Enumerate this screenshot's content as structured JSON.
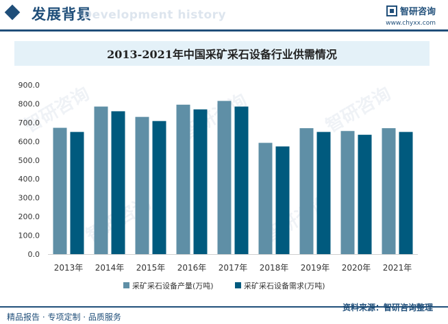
{
  "header": {
    "section_title": "发展背景",
    "ghost_text": "Development history",
    "brand_name": "智研咨询",
    "brand_url": "www.chyxx.com"
  },
  "colors": {
    "primary": "#1f4e79",
    "production": "#5f8fa6",
    "demand": "#005a7e",
    "title_band": "#e4f1f8"
  },
  "chart_data": {
    "type": "bar",
    "title": "2013-2021年中国采矿采石设备行业供需情况",
    "categories": [
      "2013年",
      "2014年",
      "2015年",
      "2016年",
      "2017年",
      "2018年",
      "2019年",
      "2020年",
      "2021年"
    ],
    "series": [
      {
        "name": "采矿采石设备产量(万吨)",
        "values": [
          672,
          785,
          730,
          795,
          815,
          592,
          670,
          655,
          670
        ]
      },
      {
        "name": "采矿采石设备需求(万吨)",
        "values": [
          650,
          760,
          708,
          770,
          785,
          573,
          650,
          635,
          650
        ]
      }
    ],
    "yticks": [
      "0.0",
      "100.0",
      "200.0",
      "300.0",
      "400.0",
      "500.0",
      "600.0",
      "700.0",
      "800.0",
      "900.0"
    ],
    "ylim": [
      0,
      900
    ],
    "grid": false,
    "legend": "bottom"
  },
  "footer": {
    "left_text": "精品报告 · 专项定制 · 品质服务",
    "right_text": "资料来源：智研咨询整理"
  }
}
